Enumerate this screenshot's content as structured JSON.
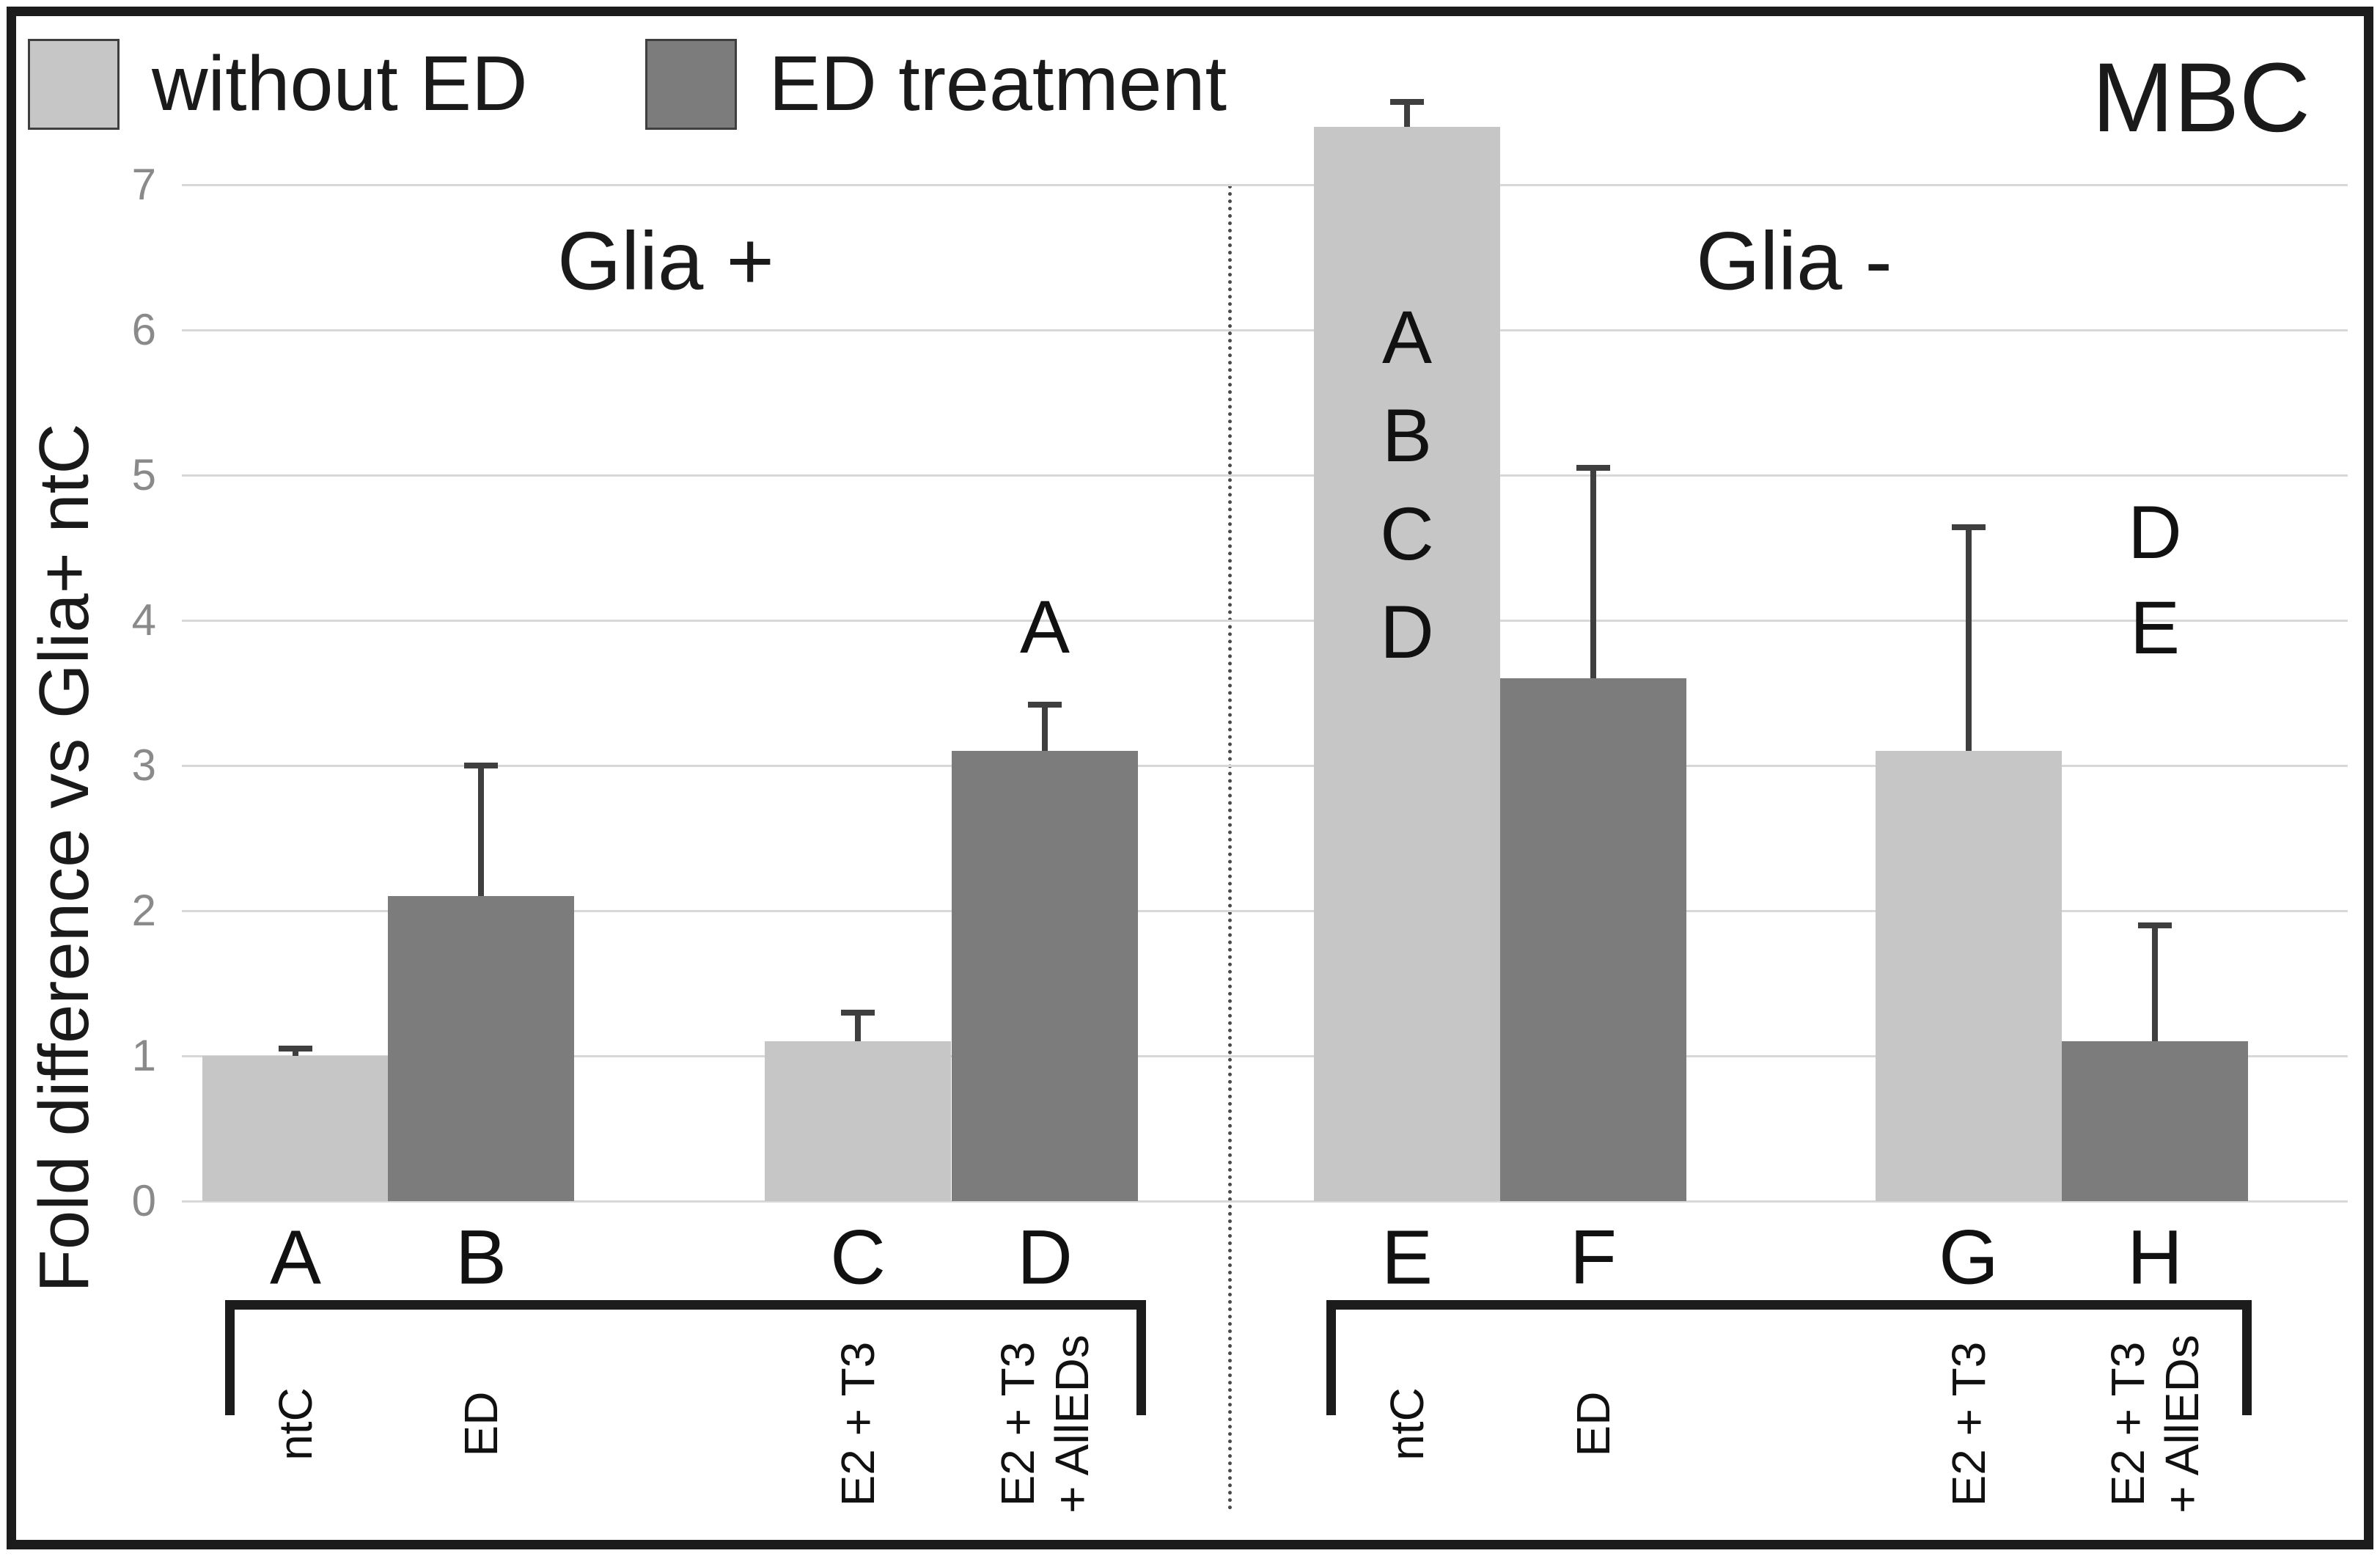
{
  "figure_title": "MBC",
  "legend": {
    "items": [
      {
        "label": "without ED",
        "color": "#c6c6c6"
      },
      {
        "label": "ED treatment",
        "color": "#7c7c7c"
      }
    ]
  },
  "y_axis": {
    "label": "Fold difference vs Glia+ ntC",
    "ticks": [
      0,
      1,
      2,
      3,
      4,
      5,
      6,
      7
    ]
  },
  "panels": [
    {
      "label": "Glia +"
    },
    {
      "label": "Glia -"
    }
  ],
  "chart_data": {
    "type": "bar",
    "title": "MBC",
    "xlabel": "",
    "ylabel": "Fold difference vs Glia+ ntC",
    "ylim": [
      0,
      7.6
    ],
    "grid": true,
    "legend_position": "top-left",
    "series_names": [
      "without ED",
      "ED treatment"
    ],
    "panel_names": [
      "Glia +",
      "Glia -"
    ],
    "bars": [
      {
        "id": "A",
        "panel": "Glia +",
        "treatment": [
          "ntC"
        ],
        "series": "without ED",
        "value": 1.0,
        "error_top": 1.05
      },
      {
        "id": "B",
        "panel": "Glia +",
        "treatment": [
          "ED"
        ],
        "series": "ED treatment",
        "value": 2.1,
        "error_top": 3.0
      },
      {
        "id": "C",
        "panel": "Glia +",
        "treatment": [
          "E2 + T3"
        ],
        "series": "without ED",
        "value": 1.1,
        "error_top": 1.3
      },
      {
        "id": "D",
        "panel": "Glia +",
        "treatment": [
          "E2 + T3",
          "+ AllEDs"
        ],
        "series": "ED treatment",
        "value": 3.1,
        "error_top": 3.42
      },
      {
        "id": "E",
        "panel": "Glia -",
        "treatment": [
          "ntC"
        ],
        "series": "without ED",
        "value": 7.4,
        "error_top": 7.57
      },
      {
        "id": "F",
        "panel": "Glia -",
        "treatment": [
          "ED"
        ],
        "series": "ED treatment",
        "value": 3.6,
        "error_top": 5.05
      },
      {
        "id": "G",
        "panel": "Glia -",
        "treatment": [
          "E2 + T3"
        ],
        "series": "without ED",
        "value": 3.1,
        "error_top": 4.64
      },
      {
        "id": "H",
        "panel": "Glia -",
        "treatment": [
          "E2 + T3",
          "+ AllEDs"
        ],
        "series": "ED treatment",
        "value": 1.1,
        "error_top": 1.9
      }
    ],
    "significance_letters": [
      {
        "bar": "D",
        "letters": [
          "A"
        ],
        "placement": "above-bar"
      },
      {
        "bar": "E",
        "letters": [
          "A",
          "B",
          "C",
          "D"
        ],
        "placement": "inside-bar"
      },
      {
        "bar": "H",
        "letters": [
          "D",
          "E"
        ],
        "placement": "above-bar"
      }
    ]
  },
  "colors": {
    "without_ed": "#c6c6c6",
    "ed_treatment": "#7c7c7c",
    "error_bar": "#3f3f3f",
    "gridline": "#d8d8d8",
    "tick_text": "#8a8a8a",
    "frame": "#1c1c1c",
    "text": "#111111"
  }
}
